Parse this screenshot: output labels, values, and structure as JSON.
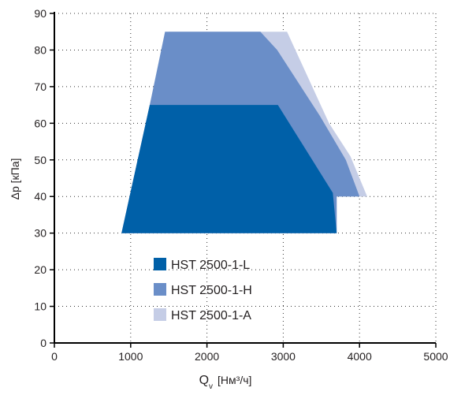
{
  "chart_data": {
    "type": "area",
    "title": "",
    "xlabel": {
      "symbol": "Q",
      "subscript": "v",
      "unit": "[Нм³/ч]"
    },
    "ylabel": "Δp [кПа]",
    "xlim": [
      0,
      5000
    ],
    "ylim": [
      0,
      90
    ],
    "x_ticks": [
      0,
      1000,
      2000,
      3000,
      4000,
      5000
    ],
    "y_ticks": [
      0,
      10,
      20,
      30,
      40,
      50,
      60,
      70,
      80,
      90
    ],
    "grid": true,
    "grid_style": "dotted",
    "legend_position": "bottom-center",
    "series": [
      {
        "name": "HST 2500-1-A",
        "color": "#c5cde6",
        "polygon": [
          [
            1500,
            85
          ],
          [
            3050,
            85
          ],
          [
            3600,
            60
          ],
          [
            3880,
            51
          ],
          [
            4100,
            40
          ],
          [
            3700,
            40
          ],
          [
            3700,
            30
          ],
          [
            880,
            30
          ],
          [
            1250,
            65
          ]
        ]
      },
      {
        "name": "HST 2500-1-H",
        "color": "#6a8ec8",
        "polygon": [
          [
            1450,
            85
          ],
          [
            2700,
            85
          ],
          [
            2920,
            80
          ],
          [
            3480,
            62
          ],
          [
            3820,
            50
          ],
          [
            4000,
            40
          ],
          [
            3700,
            40
          ],
          [
            3700,
            30
          ],
          [
            880,
            30
          ],
          [
            1250,
            65
          ]
        ]
      },
      {
        "name": "HST 2500-1-L",
        "color": "#0060a8",
        "polygon": [
          [
            1250,
            65
          ],
          [
            2930,
            65
          ],
          [
            3650,
            41
          ],
          [
            3700,
            30
          ],
          [
            880,
            30
          ]
        ]
      }
    ],
    "legend": [
      {
        "label": "HST 2500-1-L",
        "color": "#0060a8"
      },
      {
        "label": "HST 2500-1-H",
        "color": "#6a8ec8"
      },
      {
        "label": "HST 2500-1-A",
        "color": "#c5cde6"
      }
    ]
  }
}
